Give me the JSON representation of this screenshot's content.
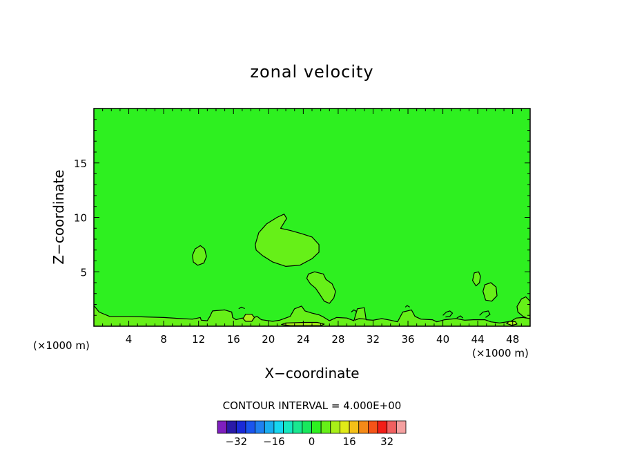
{
  "chart_data": {
    "type": "contour",
    "title": "zonal velocity",
    "xlabel": "X−coordinate",
    "ylabel": "Z−coordinate",
    "x_unit_left": "(×1000 m)",
    "x_unit_right": "(×1000 m)",
    "xlim": [
      0,
      50
    ],
    "ylim": [
      0,
      20
    ],
    "x_ticks": [
      4,
      8,
      12,
      16,
      20,
      24,
      28,
      32,
      36,
      40,
      44,
      48
    ],
    "x_tick_labels": [
      "4",
      "8",
      "12",
      "16",
      "20",
      "24",
      "28",
      "32",
      "36",
      "40",
      "44",
      "48"
    ],
    "y_ticks": [
      5,
      10,
      15
    ],
    "y_tick_labels": [
      "5",
      "10",
      "15"
    ],
    "background_level": 0,
    "contour_interval_label": "CONTOUR INTERVAL = 4.000E+00",
    "colorbar": {
      "levels": [
        -36,
        -32,
        -28,
        -24,
        -20,
        -16,
        -12,
        -8,
        -4,
        0,
        4,
        8,
        12,
        16,
        20,
        24,
        28,
        32,
        36
      ],
      "colors": [
        "#7f1fbf",
        "#2a1aa8",
        "#1a2ad8",
        "#1a55ee",
        "#1f80f0",
        "#19aef0",
        "#16d6f0",
        "#16e8c0",
        "#19e890",
        "#18e85c",
        "#2ef020",
        "#66f018",
        "#a8f018",
        "#e0ea18",
        "#f5c018",
        "#f58a18",
        "#f55418",
        "#f21e18",
        "#f06060",
        "#f5a0a0"
      ],
      "tick_values": [
        -32,
        -16,
        0,
        16,
        32
      ],
      "tick_labels": [
        "−32",
        "−16",
        "0",
        "16",
        "32"
      ]
    },
    "regions": [
      {
        "name": "cell-upper",
        "level": 4,
        "points": [
          [
            18.5,
            7.5
          ],
          [
            18.9,
            8.6
          ],
          [
            19.8,
            9.4
          ],
          [
            21.0,
            10.0
          ],
          [
            21.8,
            10.3
          ],
          [
            22.1,
            9.9
          ],
          [
            21.4,
            9.0
          ],
          [
            22.5,
            8.8
          ],
          [
            23.8,
            8.5
          ],
          [
            25.0,
            8.2
          ],
          [
            25.8,
            7.5
          ],
          [
            25.8,
            6.8
          ],
          [
            25.0,
            6.2
          ],
          [
            23.6,
            5.6
          ],
          [
            22.0,
            5.5
          ],
          [
            20.5,
            5.9
          ],
          [
            19.3,
            6.5
          ],
          [
            18.6,
            7.0
          ]
        ]
      },
      {
        "name": "cell-small",
        "level": 4,
        "points": [
          [
            11.3,
            6.5
          ],
          [
            11.6,
            7.1
          ],
          [
            12.2,
            7.4
          ],
          [
            12.7,
            7.1
          ],
          [
            12.9,
            6.4
          ],
          [
            12.6,
            5.8
          ],
          [
            11.9,
            5.6
          ],
          [
            11.4,
            5.9
          ]
        ]
      },
      {
        "name": "cell-plume",
        "level": 4,
        "points": [
          [
            24.6,
            4.8
          ],
          [
            25.3,
            5.0
          ],
          [
            26.3,
            4.8
          ],
          [
            26.6,
            4.3
          ],
          [
            27.3,
            3.9
          ],
          [
            27.7,
            3.2
          ],
          [
            27.5,
            2.6
          ],
          [
            27.0,
            2.1
          ],
          [
            26.4,
            2.3
          ],
          [
            26.0,
            2.8
          ],
          [
            25.4,
            3.5
          ],
          [
            24.8,
            3.9
          ],
          [
            24.4,
            4.4
          ]
        ]
      },
      {
        "name": "cell-e1",
        "level": 4,
        "points": [
          [
            43.4,
            4.2
          ],
          [
            43.6,
            4.9
          ],
          [
            44.1,
            5.0
          ],
          [
            44.3,
            4.6
          ],
          [
            44.2,
            4.0
          ],
          [
            43.8,
            3.7
          ]
        ]
      },
      {
        "name": "cell-e2",
        "level": 4,
        "points": [
          [
            44.6,
            3.2
          ],
          [
            44.8,
            3.8
          ],
          [
            45.5,
            4.0
          ],
          [
            46.1,
            3.6
          ],
          [
            46.2,
            2.8
          ],
          [
            45.6,
            2.3
          ],
          [
            44.9,
            2.4
          ]
        ]
      },
      {
        "name": "cell-right",
        "level": 4,
        "points": [
          [
            49.0,
            2.5
          ],
          [
            49.5,
            2.7
          ],
          [
            50.0,
            2.3
          ],
          [
            50.0,
            0.6
          ],
          [
            49.2,
            0.9
          ],
          [
            48.6,
            1.3
          ],
          [
            48.5,
            1.8
          ]
        ]
      },
      {
        "name": "surface-band",
        "level": 4,
        "points": [
          [
            0,
            0
          ],
          [
            0,
            1.9
          ],
          [
            0.6,
            1.3
          ],
          [
            1.8,
            0.9
          ],
          [
            4.0,
            0.9
          ],
          [
            6.0,
            0.85
          ],
          [
            8.0,
            0.8
          ],
          [
            10.0,
            0.7
          ],
          [
            11.3,
            0.65
          ],
          [
            12.2,
            0.8
          ],
          [
            12.3,
            0.55
          ],
          [
            13.0,
            0.5
          ],
          [
            13.3,
            0.9
          ],
          [
            13.6,
            1.4
          ],
          [
            15.0,
            1.5
          ],
          [
            15.8,
            1.3
          ],
          [
            15.9,
            0.8
          ],
          [
            16.3,
            0.6
          ],
          [
            17.0,
            0.75
          ],
          [
            18.0,
            0.7
          ],
          [
            18.7,
            0.9
          ],
          [
            19.2,
            0.6
          ],
          [
            20.5,
            0.45
          ],
          [
            21.3,
            0.55
          ],
          [
            22.5,
            0.9
          ],
          [
            23.0,
            1.6
          ],
          [
            23.8,
            1.85
          ],
          [
            24.2,
            1.4
          ],
          [
            25.0,
            1.2
          ],
          [
            25.8,
            1.05
          ],
          [
            26.3,
            0.85
          ],
          [
            27.0,
            0.5
          ],
          [
            27.8,
            0.8
          ],
          [
            29.0,
            0.75
          ],
          [
            29.8,
            0.5
          ],
          [
            30.2,
            1.6
          ],
          [
            31.0,
            1.7
          ],
          [
            31.2,
            0.6
          ],
          [
            32.0,
            0.55
          ],
          [
            33.0,
            0.7
          ],
          [
            34.0,
            0.55
          ],
          [
            34.8,
            0.4
          ],
          [
            35.4,
            1.3
          ],
          [
            36.4,
            1.5
          ],
          [
            36.8,
            0.9
          ],
          [
            37.5,
            0.65
          ],
          [
            38.8,
            0.6
          ],
          [
            39.3,
            0.4
          ],
          [
            40.2,
            0.6
          ],
          [
            41.5,
            0.7
          ],
          [
            42.5,
            0.55
          ],
          [
            43.5,
            0.6
          ],
          [
            44.8,
            0.6
          ],
          [
            45.5,
            0.4
          ],
          [
            46.5,
            0.3
          ],
          [
            47.8,
            0.45
          ],
          [
            48.4,
            0.75
          ],
          [
            49.2,
            0.8
          ],
          [
            50.0,
            0.7
          ],
          [
            50,
            0
          ]
        ]
      },
      {
        "name": "surface-patch-west",
        "level": 8,
        "points": [
          [
            17.1,
            0.7
          ],
          [
            17.4,
            1.1
          ],
          [
            18.1,
            1.1
          ],
          [
            18.4,
            0.8
          ],
          [
            18.1,
            0.45
          ],
          [
            17.4,
            0.45
          ]
        ]
      },
      {
        "name": "surface-patch-center",
        "level": 8,
        "points": [
          [
            21.5,
            0.15
          ],
          [
            22.0,
            0.3
          ],
          [
            24.2,
            0.35
          ],
          [
            25.6,
            0.35
          ],
          [
            26.4,
            0.2
          ],
          [
            26.0,
            0.05
          ],
          [
            22.5,
            0.05
          ]
        ]
      },
      {
        "name": "surface-patch-east",
        "level": 8,
        "points": [
          [
            47.3,
            0.25
          ],
          [
            47.6,
            0.45
          ],
          [
            48.3,
            0.42
          ],
          [
            48.5,
            0.2
          ],
          [
            47.9,
            0.08
          ]
        ]
      }
    ],
    "contours": [
      {
        "level": 0,
        "points": [
          [
            16.6,
            1.6
          ],
          [
            16.9,
            1.75
          ],
          [
            17.3,
            1.62
          ]
        ]
      },
      {
        "level": 0,
        "points": [
          [
            29.5,
            1.3
          ],
          [
            29.8,
            1.5
          ],
          [
            30.1,
            1.35
          ]
        ]
      },
      {
        "level": 0,
        "points": [
          [
            35.7,
            1.75
          ],
          [
            35.9,
            1.9
          ],
          [
            36.2,
            1.75
          ]
        ]
      },
      {
        "level": 0,
        "points": [
          [
            41.6,
            0.75
          ],
          [
            42.0,
            0.95
          ],
          [
            42.3,
            0.75
          ]
        ]
      },
      {
        "level": 0,
        "points": [
          [
            40.0,
            1.0
          ],
          [
            40.4,
            1.3
          ],
          [
            40.8,
            1.4
          ],
          [
            41.1,
            1.2
          ],
          [
            40.8,
            0.9
          ],
          [
            40.3,
            0.85
          ]
        ]
      },
      {
        "level": 0,
        "points": [
          [
            44.2,
            1.0
          ],
          [
            44.6,
            1.3
          ],
          [
            45.2,
            1.4
          ],
          [
            45.4,
            1.1
          ],
          [
            44.9,
            0.8
          ]
        ]
      },
      {
        "level": 0,
        "points": [
          [
            29.9,
            0.55
          ],
          [
            30.4,
            0.7
          ],
          [
            31.2,
            0.65
          ]
        ]
      }
    ]
  }
}
